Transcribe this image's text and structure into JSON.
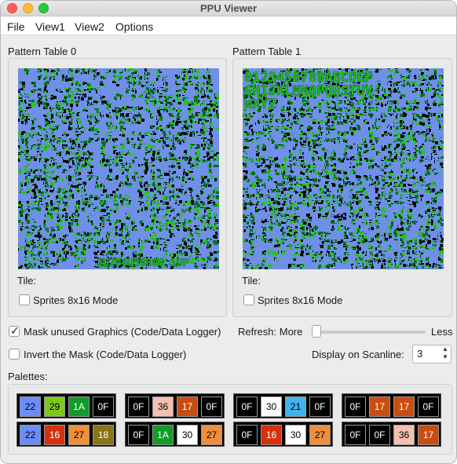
{
  "window": {
    "title": "PPU Viewer"
  },
  "menu": {
    "file": "File",
    "view1": "View1",
    "view2": "View2",
    "options": "Options"
  },
  "pattern_tables": [
    {
      "title": "Pattern Table 0",
      "tile_label": "Tile:",
      "sprites_label": "Sprites 8x16 Mode",
      "sprites_checked": false,
      "overlay_text": "1U2U4U50800   1UP",
      "background": "#6f8fe8",
      "primary": "#22c416",
      "secondary": "#0a6f1e",
      "ink": "#000000"
    },
    {
      "title": "Pattern Table 1",
      "tile_label": "Tile:",
      "sprites_label": "Sprites 8x16 Mode",
      "sprites_checked": false,
      "overlay_rows": [
        "0123456789ABCDEF",
        "GHIJKLMNOPQRSTUV",
        "WXYZ"
      ],
      "background": "#6f8fe8",
      "primary": "#22c416",
      "secondary": "#0a6f1e",
      "ink": "#000000"
    }
  ],
  "options": {
    "mask_unused": {
      "label": "Mask unused Graphics (Code/Data Logger)",
      "checked": true
    },
    "invert_mask": {
      "label": "Invert the Mask (Code/Data Logger)",
      "checked": false
    },
    "refresh": {
      "label": "Refresh: More",
      "less": "Less",
      "value": 0.0
    },
    "scanline": {
      "label": "Display on Scanline:",
      "value": "3"
    }
  },
  "palettes": {
    "label": "Palettes:",
    "rows": [
      [
        [
          {
            "code": "22",
            "color": "#6b8cff",
            "text": "#000000"
          },
          {
            "code": "29",
            "color": "#7ec81a",
            "text": "#000000"
          },
          {
            "code": "1A",
            "color": "#119b2a",
            "text": "#ffffff"
          },
          {
            "code": "0F",
            "color": "#000000",
            "text": "#ffffff"
          }
        ],
        [
          {
            "code": "0F",
            "color": "#000000",
            "text": "#ffffff"
          },
          {
            "code": "36",
            "color": "#f5bfb1",
            "text": "#000000"
          },
          {
            "code": "17",
            "color": "#c84d12",
            "text": "#ffffff"
          },
          {
            "code": "0F",
            "color": "#000000",
            "text": "#ffffff"
          }
        ],
        [
          {
            "code": "0F",
            "color": "#000000",
            "text": "#ffffff"
          },
          {
            "code": "30",
            "color": "#ffffff",
            "text": "#000000"
          },
          {
            "code": "21",
            "color": "#40b2ee",
            "text": "#000000"
          },
          {
            "code": "0F",
            "color": "#000000",
            "text": "#ffffff"
          }
        ],
        [
          {
            "code": "0F",
            "color": "#000000",
            "text": "#ffffff"
          },
          {
            "code": "17",
            "color": "#c84d12",
            "text": "#ffffff"
          },
          {
            "code": "17",
            "color": "#c84d12",
            "text": "#ffffff"
          },
          {
            "code": "0F",
            "color": "#000000",
            "text": "#ffffff"
          }
        ]
      ],
      [
        [
          {
            "code": "22",
            "color": "#6b8cff",
            "text": "#000000"
          },
          {
            "code": "16",
            "color": "#d8300e",
            "text": "#ffffff"
          },
          {
            "code": "27",
            "color": "#f08e3c",
            "text": "#000000"
          },
          {
            "code": "18",
            "color": "#8a7414",
            "text": "#ffffff"
          }
        ],
        [
          {
            "code": "0F",
            "color": "#000000",
            "text": "#ffffff"
          },
          {
            "code": "1A",
            "color": "#119b2a",
            "text": "#ffffff"
          },
          {
            "code": "30",
            "color": "#ffffff",
            "text": "#000000"
          },
          {
            "code": "27",
            "color": "#f08e3c",
            "text": "#000000"
          }
        ],
        [
          {
            "code": "0F",
            "color": "#000000",
            "text": "#ffffff"
          },
          {
            "code": "16",
            "color": "#d8300e",
            "text": "#ffffff"
          },
          {
            "code": "30",
            "color": "#ffffff",
            "text": "#000000"
          },
          {
            "code": "27",
            "color": "#f08e3c",
            "text": "#000000"
          }
        ],
        [
          {
            "code": "0F",
            "color": "#000000",
            "text": "#ffffff"
          },
          {
            "code": "0F",
            "color": "#000000",
            "text": "#ffffff"
          },
          {
            "code": "36",
            "color": "#f5bfb1",
            "text": "#000000"
          },
          {
            "code": "17",
            "color": "#c84d12",
            "text": "#ffffff"
          }
        ]
      ]
    ]
  }
}
